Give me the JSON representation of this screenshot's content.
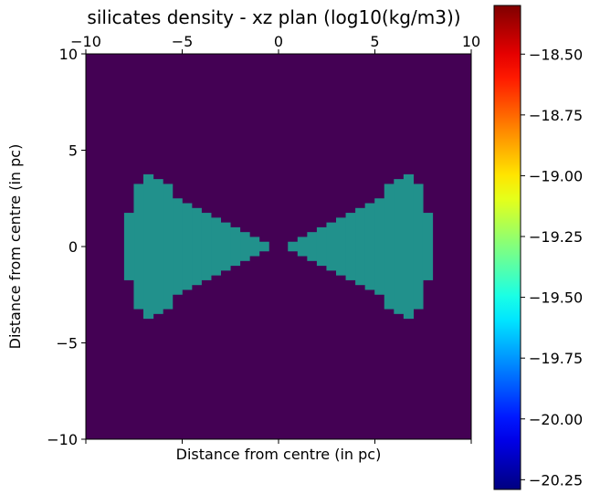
{
  "chart_data": {
    "type": "heatmap",
    "title": "silicates density - xz plan (log10(kg/m3))",
    "xlabel": "Distance from centre (in pc)",
    "ylabel": "Distance from centre (in pc)",
    "xlim": [
      -10,
      10
    ],
    "ylim": [
      -10,
      10
    ],
    "xticks": [
      -10,
      -5,
      0,
      5,
      10
    ],
    "yticks": [
      -10,
      -5,
      0,
      5,
      10
    ],
    "grid_cells": 40,
    "background_value": -20.29,
    "cone_value": -19.45,
    "cone_profile_from_centre": [
      {
        "x_from": 0.5,
        "x_to": 1.0,
        "half_height": 0.25
      },
      {
        "x_from": 1.0,
        "x_to": 1.5,
        "half_height": 0.5
      },
      {
        "x_from": 1.5,
        "x_to": 2.0,
        "half_height": 0.75
      },
      {
        "x_from": 2.0,
        "x_to": 2.5,
        "half_height": 1.0
      },
      {
        "x_from": 2.5,
        "x_to": 3.0,
        "half_height": 1.25
      },
      {
        "x_from": 3.0,
        "x_to": 3.5,
        "half_height": 1.5
      },
      {
        "x_from": 3.5,
        "x_to": 4.0,
        "half_height": 1.75
      },
      {
        "x_from": 4.0,
        "x_to": 4.5,
        "half_height": 2.0
      },
      {
        "x_from": 4.5,
        "x_to": 5.0,
        "half_height": 2.25
      },
      {
        "x_from": 5.0,
        "x_to": 5.5,
        "half_height": 2.5
      },
      {
        "x_from": 5.5,
        "x_to": 6.0,
        "half_height": 3.25
      },
      {
        "x_from": 6.0,
        "x_to": 6.5,
        "half_height": 3.5
      },
      {
        "x_from": 6.5,
        "x_to": 7.0,
        "half_height": 3.75
      },
      {
        "x_from": 7.0,
        "x_to": 7.5,
        "half_height": 3.25
      },
      {
        "x_from": 7.5,
        "x_to": 8.0,
        "half_height": 1.75
      }
    ],
    "colorbar": {
      "colormap": "jet",
      "range": [
        -20.29,
        -18.3
      ],
      "ticks": [
        -18.5,
        -18.75,
        -19.0,
        -19.25,
        -19.5,
        -19.75,
        -20.0,
        -20.25
      ],
      "tick_labels": [
        "−18.50",
        "−18.75",
        "−19.00",
        "−19.25",
        "−19.50",
        "−19.75",
        "−20.00",
        "−20.25"
      ]
    },
    "grid": false,
    "legend": "none"
  }
}
